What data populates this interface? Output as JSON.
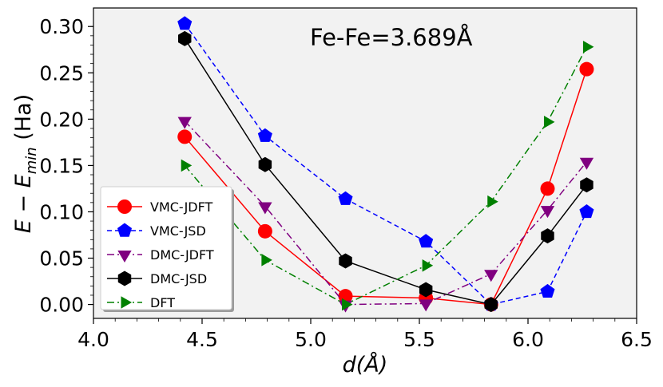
{
  "chart_data": {
    "type": "line",
    "annotation": "Fe-Fe=3.689Å",
    "xlabel": "d(Å)",
    "ylabel": "E − E",
    "ylabel_sub": "min",
    "ylabel_unit": " (Ha)",
    "xlim": [
      4.0,
      6.5
    ],
    "ylim": [
      -0.015,
      0.32
    ],
    "xticks": [
      4.0,
      4.5,
      5.0,
      5.5,
      6.0,
      6.5
    ],
    "xtick_labels": [
      "4.0",
      "4.5",
      "5.0",
      "5.5",
      "6.0",
      "6.5"
    ],
    "yticks": [
      0.0,
      0.05,
      0.1,
      0.15,
      0.2,
      0.25,
      0.3
    ],
    "ytick_labels": [
      "0.00",
      "0.05",
      "0.10",
      "0.15",
      "0.20",
      "0.25",
      "0.30"
    ],
    "legend_position": "lower-left",
    "x": [
      4.42,
      4.79,
      5.16,
      5.53,
      5.83,
      6.09,
      6.27
    ],
    "series": [
      {
        "name": "VMC-JDFT",
        "color": "#ff0000",
        "marker": "circle",
        "line": "solid",
        "values": [
          0.181,
          0.079,
          0.009,
          0.007,
          0.0,
          0.125,
          0.254
        ]
      },
      {
        "name": "VMC-JSD",
        "color": "#0000ff",
        "marker": "pentagon",
        "line": "dashed",
        "values": [
          0.303,
          0.182,
          0.114,
          0.068,
          0.0,
          0.014,
          0.1
        ]
      },
      {
        "name": "DMC-JDFT",
        "color": "#800080",
        "marker": "triangle-down",
        "line": "dashdot",
        "values": [
          0.198,
          0.106,
          0.0,
          0.001,
          0.033,
          0.102,
          0.154
        ]
      },
      {
        "name": "DMC-JSD",
        "color": "#000000",
        "marker": "hexagon",
        "line": "solid",
        "values": [
          0.287,
          0.151,
          0.047,
          0.016,
          0.0,
          0.074,
          0.129
        ]
      },
      {
        "name": "DFT",
        "color": "#008000",
        "marker": "triangle-right",
        "line": "dashdot",
        "values": [
          0.15,
          0.048,
          0.0,
          0.042,
          0.111,
          0.197,
          0.278
        ]
      }
    ]
  }
}
